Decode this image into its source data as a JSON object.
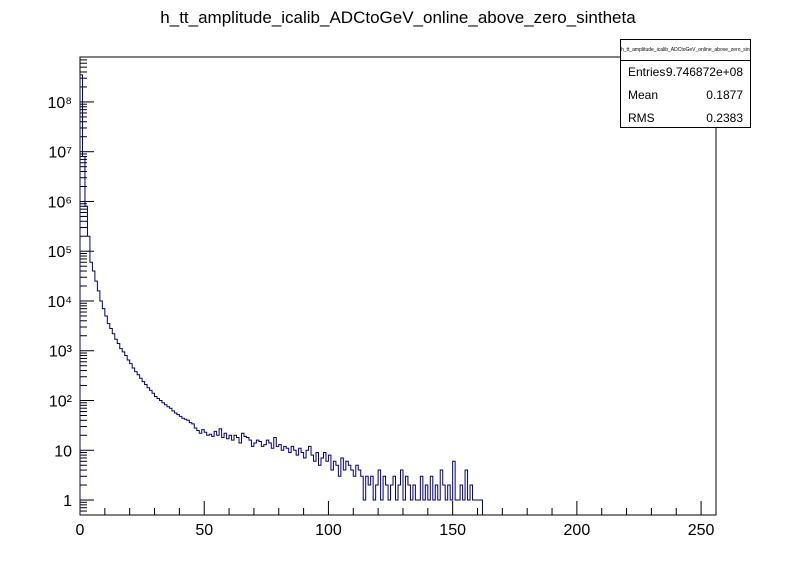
{
  "chart_data": {
    "type": "histogram",
    "title": "h_tt_amplitude_icalib_ADCtoGeV_online_above_zero_sintheta",
    "xlabel": "",
    "ylabel": "",
    "xlim": [
      0,
      256
    ],
    "ylim": [
      0.5,
      800000000
    ],
    "yscale": "log",
    "bin_width": 1,
    "line_color": "#00007f",
    "x_ticks": [
      0,
      50,
      100,
      150,
      200,
      250
    ],
    "x_tick_labels": [
      "0",
      "50",
      "100",
      "150",
      "200",
      "250"
    ],
    "y_ticks": [
      1,
      10,
      100,
      1000,
      10000,
      100000,
      1000000,
      10000000,
      100000000
    ],
    "y_tick_labels": [
      "1",
      "10",
      "10²",
      "10³",
      "10⁴",
      "10⁵",
      "10⁶",
      "10⁷",
      "10⁸"
    ],
    "bins": [
      [
        0,
        350000000
      ],
      [
        1,
        8000000
      ],
      [
        2,
        800000
      ],
      [
        3,
        200000
      ],
      [
        4,
        60000
      ],
      [
        5,
        40000
      ],
      [
        6,
        25000
      ],
      [
        7,
        16000
      ],
      [
        8,
        10000
      ],
      [
        9,
        7000
      ],
      [
        10,
        5000
      ],
      [
        11,
        3500
      ],
      [
        12,
        2800
      ],
      [
        13,
        2200
      ],
      [
        14,
        1700
      ],
      [
        15,
        1400
      ],
      [
        16,
        1100
      ],
      [
        17,
        950
      ],
      [
        18,
        800
      ],
      [
        19,
        650
      ],
      [
        20,
        550
      ],
      [
        21,
        450
      ],
      [
        22,
        380
      ],
      [
        23,
        330
      ],
      [
        24,
        280
      ],
      [
        25,
        240
      ],
      [
        26,
        210
      ],
      [
        27,
        180
      ],
      [
        28,
        160
      ],
      [
        29,
        140
      ],
      [
        30,
        120
      ],
      [
        31,
        110
      ],
      [
        32,
        100
      ],
      [
        33,
        90
      ],
      [
        34,
        82
      ],
      [
        35,
        75
      ],
      [
        36,
        70
      ],
      [
        37,
        62
      ],
      [
        38,
        56
      ],
      [
        39,
        52
      ],
      [
        40,
        48
      ],
      [
        41,
        44
      ],
      [
        42,
        42
      ],
      [
        43,
        40
      ],
      [
        44,
        36
      ],
      [
        45,
        34
      ],
      [
        46,
        28
      ],
      [
        47,
        25
      ],
      [
        48,
        22
      ],
      [
        49,
        26
      ],
      [
        50,
        23
      ],
      [
        51,
        20
      ],
      [
        52,
        21
      ],
      [
        53,
        19
      ],
      [
        54,
        24
      ],
      [
        55,
        20
      ],
      [
        56,
        27
      ],
      [
        57,
        18
      ],
      [
        58,
        22
      ],
      [
        59,
        17
      ],
      [
        60,
        20
      ],
      [
        61,
        16
      ],
      [
        62,
        20
      ],
      [
        63,
        18
      ],
      [
        64,
        14
      ],
      [
        65,
        22
      ],
      [
        66,
        19
      ],
      [
        67,
        18
      ],
      [
        68,
        16
      ],
      [
        69,
        12
      ],
      [
        70,
        14
      ],
      [
        71,
        16
      ],
      [
        72,
        15
      ],
      [
        73,
        12
      ],
      [
        74,
        13
      ],
      [
        75,
        16
      ],
      [
        76,
        14
      ],
      [
        77,
        11
      ],
      [
        78,
        18
      ],
      [
        79,
        12
      ],
      [
        80,
        13
      ],
      [
        81,
        10
      ],
      [
        82,
        12
      ],
      [
        83,
        11
      ],
      [
        84,
        9
      ],
      [
        85,
        12
      ],
      [
        86,
        10
      ],
      [
        87,
        8
      ],
      [
        88,
        11
      ],
      [
        89,
        9
      ],
      [
        90,
        7
      ],
      [
        91,
        10
      ],
      [
        92,
        12
      ],
      [
        93,
        8
      ],
      [
        94,
        6
      ],
      [
        95,
        9
      ],
      [
        96,
        5
      ],
      [
        97,
        7
      ],
      [
        98,
        9
      ],
      [
        99,
        6
      ],
      [
        100,
        8
      ],
      [
        101,
        4
      ],
      [
        102,
        6
      ],
      [
        103,
        5
      ],
      [
        104,
        3
      ],
      [
        105,
        7
      ],
      [
        106,
        4
      ],
      [
        107,
        6
      ],
      [
        108,
        5
      ],
      [
        109,
        4
      ],
      [
        110,
        3
      ],
      [
        111,
        5
      ],
      [
        112,
        4
      ],
      [
        113,
        3
      ],
      [
        114,
        1
      ],
      [
        115,
        3
      ],
      [
        116,
        2
      ],
      [
        117,
        3
      ],
      [
        118,
        1
      ],
      [
        119,
        2
      ],
      [
        120,
        4
      ],
      [
        121,
        1
      ],
      [
        122,
        3
      ],
      [
        123,
        2
      ],
      [
        124,
        1
      ],
      [
        125,
        2
      ],
      [
        126,
        3
      ],
      [
        127,
        1
      ],
      [
        128,
        2
      ],
      [
        129,
        4
      ],
      [
        130,
        1
      ],
      [
        131,
        3
      ],
      [
        132,
        2
      ],
      [
        133,
        1
      ],
      [
        134,
        2
      ],
      [
        135,
        1
      ],
      [
        136,
        1
      ],
      [
        137,
        3
      ],
      [
        138,
        1
      ],
      [
        139,
        2
      ],
      [
        140,
        1
      ],
      [
        141,
        3
      ],
      [
        142,
        1
      ],
      [
        143,
        2
      ],
      [
        144,
        1
      ],
      [
        145,
        4
      ],
      [
        146,
        2
      ],
      [
        147,
        1
      ],
      [
        148,
        2
      ],
      [
        149,
        1
      ],
      [
        150,
        6
      ],
      [
        151,
        1
      ],
      [
        152,
        1
      ],
      [
        153,
        2
      ],
      [
        154,
        1
      ],
      [
        155,
        4
      ],
      [
        156,
        1
      ],
      [
        157,
        2
      ],
      [
        158,
        1
      ],
      [
        159,
        1
      ],
      [
        160,
        1
      ],
      [
        161,
        1
      ]
    ]
  },
  "stats": {
    "title": "h_tt_amplitude_icalib_ADCtoGeV_online_above_zero_sintheta",
    "rows": [
      {
        "label": "Entries",
        "value": "9.746872e+08"
      },
      {
        "label": "Mean",
        "value": "0.1877"
      },
      {
        "label": "RMS",
        "value": "0.2383"
      }
    ]
  }
}
